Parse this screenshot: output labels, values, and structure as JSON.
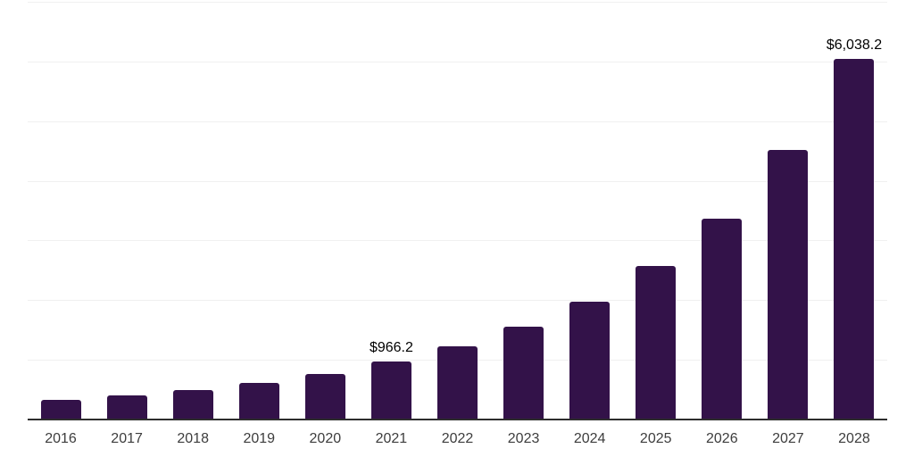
{
  "chart_data": {
    "type": "bar",
    "categories": [
      "2016",
      "2017",
      "2018",
      "2019",
      "2020",
      "2021",
      "2022",
      "2023",
      "2024",
      "2025",
      "2026",
      "2027",
      "2028"
    ],
    "values": [
      335,
      410,
      500,
      610,
      770,
      966.2,
      1230,
      1550,
      1980,
      2570,
      3360,
      4510,
      6038.2
    ],
    "data_labels": [
      {
        "category": "2021",
        "text": "$966.2"
      },
      {
        "category": "2028",
        "text": "$6,038.2"
      }
    ],
    "xlabel": "",
    "ylabel": "",
    "ylim": [
      0,
      7000
    ],
    "grid_step": 1000,
    "grid": true,
    "legend": false,
    "colors": {
      "bar": "#331249",
      "gridline": "#f0f0f0",
      "axis_line": "#2e2e2e",
      "tick_label": "#3d3d3d",
      "data_label": "#000000",
      "background": "#ffffff"
    }
  }
}
